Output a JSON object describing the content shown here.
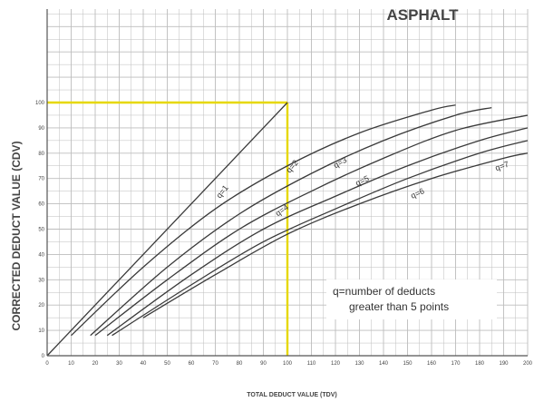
{
  "chart_data": {
    "type": "line",
    "title": "ASPHALT",
    "xlabel": "TOTAL DEDUCT VALUE (TDV)",
    "ylabel": "CORRECTED DEDUCT VALUE (CDV)",
    "xlim": [
      0,
      200
    ],
    "ylim": [
      0,
      100
    ],
    "x_ticks": [
      "0",
      "10",
      "20",
      "30",
      "40",
      "50",
      "60",
      "70",
      "80",
      "90",
      "100",
      "110",
      "120",
      "130",
      "140",
      "150",
      "160",
      "170",
      "180",
      "190",
      "200"
    ],
    "y_ticks": [
      "0",
      "10",
      "20",
      "30",
      "40",
      "50",
      "60",
      "70",
      "80",
      "90",
      "100"
    ],
    "grid": true,
    "annotation": [
      "q=number of deducts",
      "greater than 5 points"
    ],
    "highlight": {
      "x": 100,
      "y": 100,
      "color": "#e6d800"
    },
    "series": [
      {
        "name": "q=1",
        "x": [
          0,
          100
        ],
        "y": [
          0,
          100
        ]
      },
      {
        "name": "q=2",
        "x": [
          10,
          40,
          70,
          100,
          130,
          160,
          170
        ],
        "y": [
          8,
          35,
          58,
          75,
          88,
          97,
          99
        ]
      },
      {
        "name": "q=3",
        "x": [
          18,
          50,
          80,
          110,
          140,
          170,
          185
        ],
        "y": [
          8,
          35,
          56,
          72,
          85,
          95,
          98
        ]
      },
      {
        "name": "q=4",
        "x": [
          20,
          50,
          80,
          110,
          140,
          170,
          200
        ],
        "y": [
          8,
          30,
          50,
          65,
          78,
          89,
          95
        ]
      },
      {
        "name": "q=5",
        "x": [
          25,
          60,
          90,
          120,
          150,
          180,
          200
        ],
        "y": [
          8,
          32,
          50,
          63,
          75,
          85,
          90
        ]
      },
      {
        "name": "q=6",
        "x": [
          27,
          60,
          90,
          120,
          150,
          180,
          200
        ],
        "y": [
          8,
          28,
          45,
          58,
          70,
          80,
          85
        ]
      },
      {
        "name": "q=7",
        "x": [
          40,
          70,
          100,
          130,
          160,
          190,
          200
        ],
        "y": [
          15,
          32,
          48,
          60,
          70,
          78,
          80
        ]
      }
    ],
    "colors": {
      "grid": "#bdbdbd",
      "axis": "#555555",
      "curve": "#3a3a3a",
      "highlight": "#e6d800"
    }
  }
}
